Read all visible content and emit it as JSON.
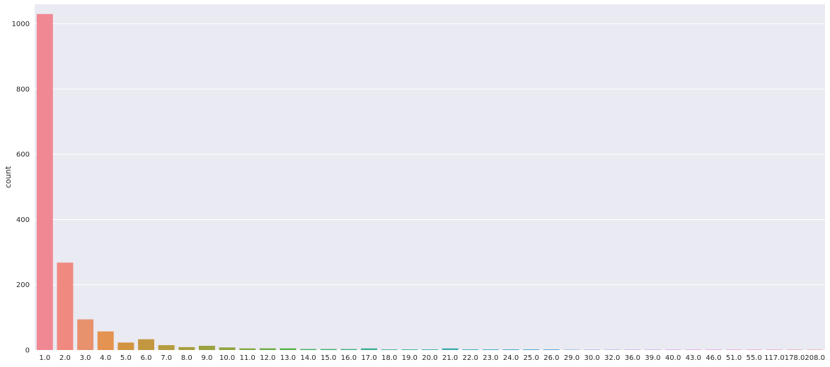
{
  "chart_data": {
    "type": "bar",
    "title": "",
    "xlabel": "",
    "ylabel": "count",
    "ylim": [
      0,
      1060
    ],
    "yticks": [
      0,
      200,
      400,
      600,
      800,
      1000
    ],
    "grid": true,
    "background": "#eaeaf2",
    "categories": [
      "1.0",
      "2.0",
      "3.0",
      "4.0",
      "5.0",
      "6.0",
      "7.0",
      "8.0",
      "9.0",
      "10.0",
      "11.0",
      "12.0",
      "13.0",
      "14.0",
      "15.0",
      "16.0",
      "17.0",
      "18.0",
      "19.0",
      "20.0",
      "21.0",
      "22.0",
      "23.0",
      "24.0",
      "25.0",
      "26.0",
      "29.0",
      "30.0",
      "32.0",
      "36.0",
      "39.0",
      "40.0",
      "43.0",
      "46.0",
      "51.0",
      "55.0",
      "117.0",
      "178.0",
      "208.0"
    ],
    "values": [
      1030,
      268,
      94,
      57,
      23,
      33,
      15,
      9,
      13,
      8,
      5,
      5,
      5,
      3,
      3,
      3,
      5,
      2,
      2,
      2,
      5,
      2,
      2,
      2,
      2,
      2,
      1,
      1,
      1,
      1,
      1,
      1,
      1,
      1,
      1,
      1,
      1,
      1,
      1
    ],
    "colors": [
      "#f08894",
      "#f0897f",
      "#e8926d",
      "#e49350",
      "#d29440",
      "#c3973f",
      "#b59c3f",
      "#a69e3f",
      "#9ba13f",
      "#8fa33f",
      "#7fa63f",
      "#6aa93f",
      "#4dae46",
      "#3cae62",
      "#3cad75",
      "#3cad82",
      "#3aad8c",
      "#3aac95",
      "#3aab9d",
      "#3aaaa5",
      "#3ba9ad",
      "#3ca8b5",
      "#3da6bd",
      "#40a3c6",
      "#47a0cf",
      "#55a0dc",
      "#6b9be5",
      "#8693e8",
      "#9b8ce8",
      "#b087e6",
      "#c07fe6",
      "#cd78e4",
      "#da74de",
      "#e56dd5",
      "#ec6cc5",
      "#ee70b5",
      "#ef74a6",
      "#f07b99",
      "#f08592"
    ]
  }
}
